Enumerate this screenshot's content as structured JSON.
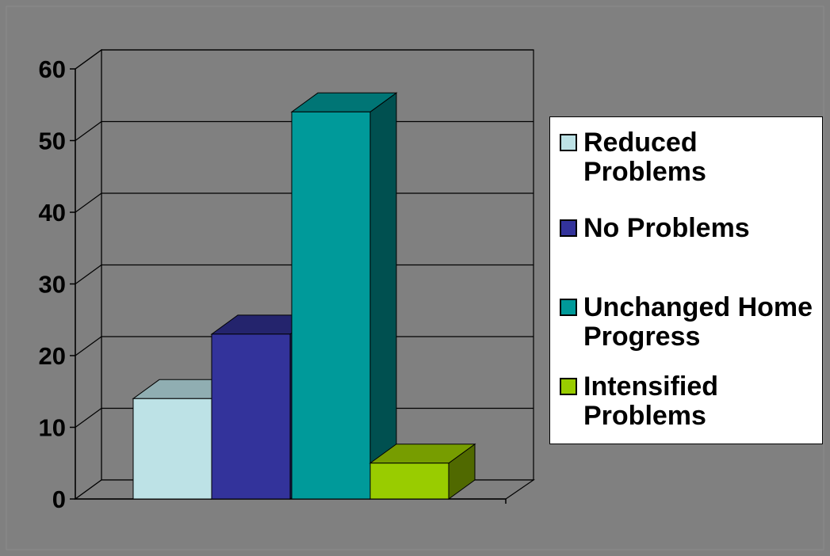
{
  "colors": {
    "background": "#808080",
    "wall": "#808080",
    "gridline": "#000000"
  },
  "chart_data": {
    "type": "bar",
    "style": "3d-column",
    "title": "",
    "xlabel": "",
    "ylabel": "",
    "ylim": [
      0,
      60
    ],
    "yticks": [
      "0",
      "10",
      "20",
      "30",
      "40",
      "50",
      "60"
    ],
    "grid": true,
    "legend_position": "right",
    "series": [
      {
        "name": "Reduced Problems",
        "value": 14,
        "color": "#bde2e6",
        "top_color": "#90aeb2",
        "side_color": "#7a9598"
      },
      {
        "name": "No Problems",
        "value": 23,
        "color": "#33339b",
        "top_color": "#24246d",
        "side_color": "#1c1c55"
      },
      {
        "name": "Unchanged Home Progress",
        "value": 54,
        "color": "#009a9a",
        "top_color": "#007575",
        "side_color": "#005050"
      },
      {
        "name": "Intensified Problems",
        "value": 5,
        "color": "#99cc00",
        "top_color": "#779d00",
        "side_color": "#506900"
      }
    ]
  }
}
